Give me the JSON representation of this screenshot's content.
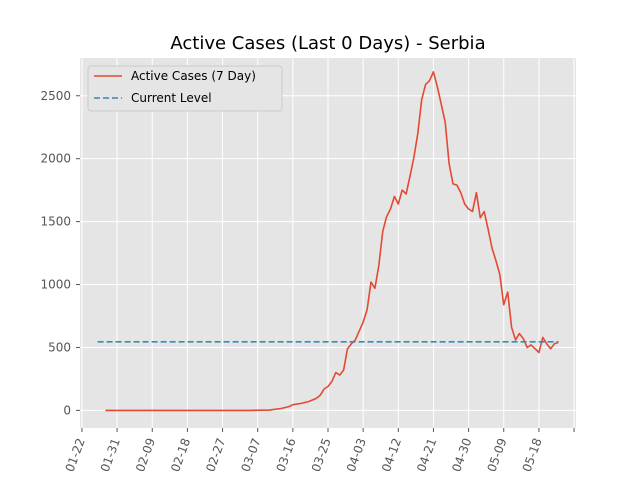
{
  "chart_data": {
    "type": "line",
    "title": "Active Cases (Last 0 Days) - Serbia",
    "xlabel": "",
    "ylabel": "",
    "x_tick_labels": [
      "01-22",
      "01-31",
      "02-09",
      "02-18",
      "02-27",
      "03-07",
      "03-16",
      "03-25",
      "04-03",
      "04-12",
      "04-21",
      "04-30",
      "05-09",
      "05-18"
    ],
    "y_ticks": [
      0,
      500,
      1000,
      1500,
      2000,
      2500
    ],
    "ylim": [
      -140,
      2800
    ],
    "grid": true,
    "legend_position": "top-left",
    "x_start_date": "2020-01-22",
    "series": [
      {
        "name": "Active Cases (7 Day)",
        "color": "#E24A33",
        "style": "solid",
        "points": [
          [
            "01-28",
            0
          ],
          [
            "02-05",
            0
          ],
          [
            "02-15",
            0
          ],
          [
            "02-25",
            0
          ],
          [
            "03-05",
            0
          ],
          [
            "03-10",
            2
          ],
          [
            "03-13",
            15
          ],
          [
            "03-15",
            30
          ],
          [
            "03-16",
            45
          ],
          [
            "03-18",
            55
          ],
          [
            "03-20",
            70
          ],
          [
            "03-22",
            95
          ],
          [
            "03-23",
            120
          ],
          [
            "03-24",
            170
          ],
          [
            "03-25",
            190
          ],
          [
            "03-26",
            230
          ],
          [
            "03-27",
            300
          ],
          [
            "03-28",
            280
          ],
          [
            "03-29",
            320
          ],
          [
            "03-30",
            490
          ],
          [
            "03-31",
            530
          ],
          [
            "04-01",
            560
          ],
          [
            "04-02",
            630
          ],
          [
            "04-03",
            700
          ],
          [
            "04-04",
            800
          ],
          [
            "04-05",
            1020
          ],
          [
            "04-06",
            970
          ],
          [
            "04-07",
            1150
          ],
          [
            "04-08",
            1420
          ],
          [
            "04-09",
            1540
          ],
          [
            "04-10",
            1600
          ],
          [
            "04-11",
            1700
          ],
          [
            "04-12",
            1640
          ],
          [
            "04-13",
            1750
          ],
          [
            "04-14",
            1720
          ],
          [
            "04-15",
            1860
          ],
          [
            "04-16",
            2010
          ],
          [
            "04-17",
            2200
          ],
          [
            "04-18",
            2470
          ],
          [
            "04-19",
            2590
          ],
          [
            "04-20",
            2620
          ],
          [
            "04-21",
            2690
          ],
          [
            "04-22",
            2570
          ],
          [
            "04-24",
            2290
          ],
          [
            "04-25",
            1960
          ],
          [
            "04-26",
            1800
          ],
          [
            "04-27",
            1790
          ],
          [
            "04-28",
            1730
          ],
          [
            "04-29",
            1640
          ],
          [
            "04-30",
            1600
          ],
          [
            "05-01",
            1580
          ],
          [
            "05-02",
            1730
          ],
          [
            "05-03",
            1530
          ],
          [
            "05-04",
            1580
          ],
          [
            "05-05",
            1440
          ],
          [
            "05-06",
            1290
          ],
          [
            "05-07",
            1190
          ],
          [
            "05-08",
            1080
          ],
          [
            "05-09",
            840
          ],
          [
            "05-10",
            940
          ],
          [
            "05-11",
            660
          ],
          [
            "05-12",
            560
          ],
          [
            "05-13",
            610
          ],
          [
            "05-14",
            570
          ],
          [
            "05-15",
            500
          ],
          [
            "05-16",
            520
          ],
          [
            "05-17",
            490
          ],
          [
            "05-18",
            460
          ],
          [
            "05-19",
            580
          ],
          [
            "05-20",
            530
          ],
          [
            "05-21",
            490
          ],
          [
            "05-22",
            530
          ],
          [
            "05-23",
            540
          ]
        ]
      },
      {
        "name": "Current Level",
        "color": "#348ABD",
        "style": "dashed",
        "points": [
          [
            "01-26",
            545
          ],
          [
            "05-23",
            545
          ]
        ]
      }
    ]
  }
}
